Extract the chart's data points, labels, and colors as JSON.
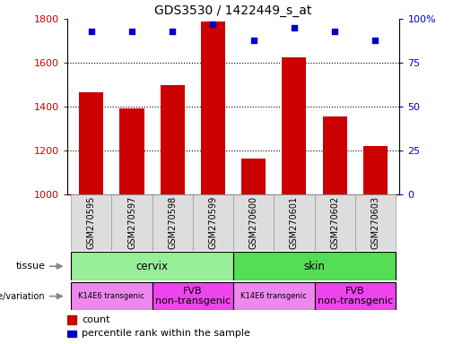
{
  "title": "GDS3530 / 1422449_s_at",
  "samples": [
    "GSM270595",
    "GSM270597",
    "GSM270598",
    "GSM270599",
    "GSM270600",
    "GSM270601",
    "GSM270602",
    "GSM270603"
  ],
  "counts": [
    1465,
    1390,
    1500,
    1790,
    1165,
    1625,
    1355,
    1220
  ],
  "percentiles": [
    93,
    93,
    93,
    97,
    88,
    95,
    93,
    88
  ],
  "ylim_left": [
    1000,
    1800
  ],
  "ylim_right": [
    0,
    100
  ],
  "yticks_left": [
    1000,
    1200,
    1400,
    1600,
    1800
  ],
  "yticks_right": [
    0,
    25,
    50,
    75,
    100
  ],
  "bar_color": "#cc0000",
  "dot_color": "#0000cc",
  "tissue_colors": [
    "#99ee99",
    "#55dd55"
  ],
  "tissue_data": [
    {
      "label": "cervix",
      "start": 0,
      "end": 3,
      "color_idx": 0
    },
    {
      "label": "skin",
      "start": 4,
      "end": 7,
      "color_idx": 1
    }
  ],
  "genotype_data": [
    {
      "label": "K14E6 transgenic",
      "start": 0,
      "end": 1,
      "color": "#ee88ee",
      "fontsize": 6
    },
    {
      "label": "FVB\nnon-transgenic",
      "start": 2,
      "end": 3,
      "color": "#ee44ee",
      "fontsize": 8
    },
    {
      "label": "K14E6 transgenic",
      "start": 4,
      "end": 5,
      "color": "#ee88ee",
      "fontsize": 6
    },
    {
      "label": "FVB\nnon-transgenic",
      "start": 6,
      "end": 7,
      "color": "#ee44ee",
      "fontsize": 8
    }
  ],
  "label_bg": "#dddddd",
  "label_border": "#999999",
  "grid_dotted_color": "#333333",
  "right_axis_color": "#0000cc",
  "left_axis_color": "#cc0000"
}
